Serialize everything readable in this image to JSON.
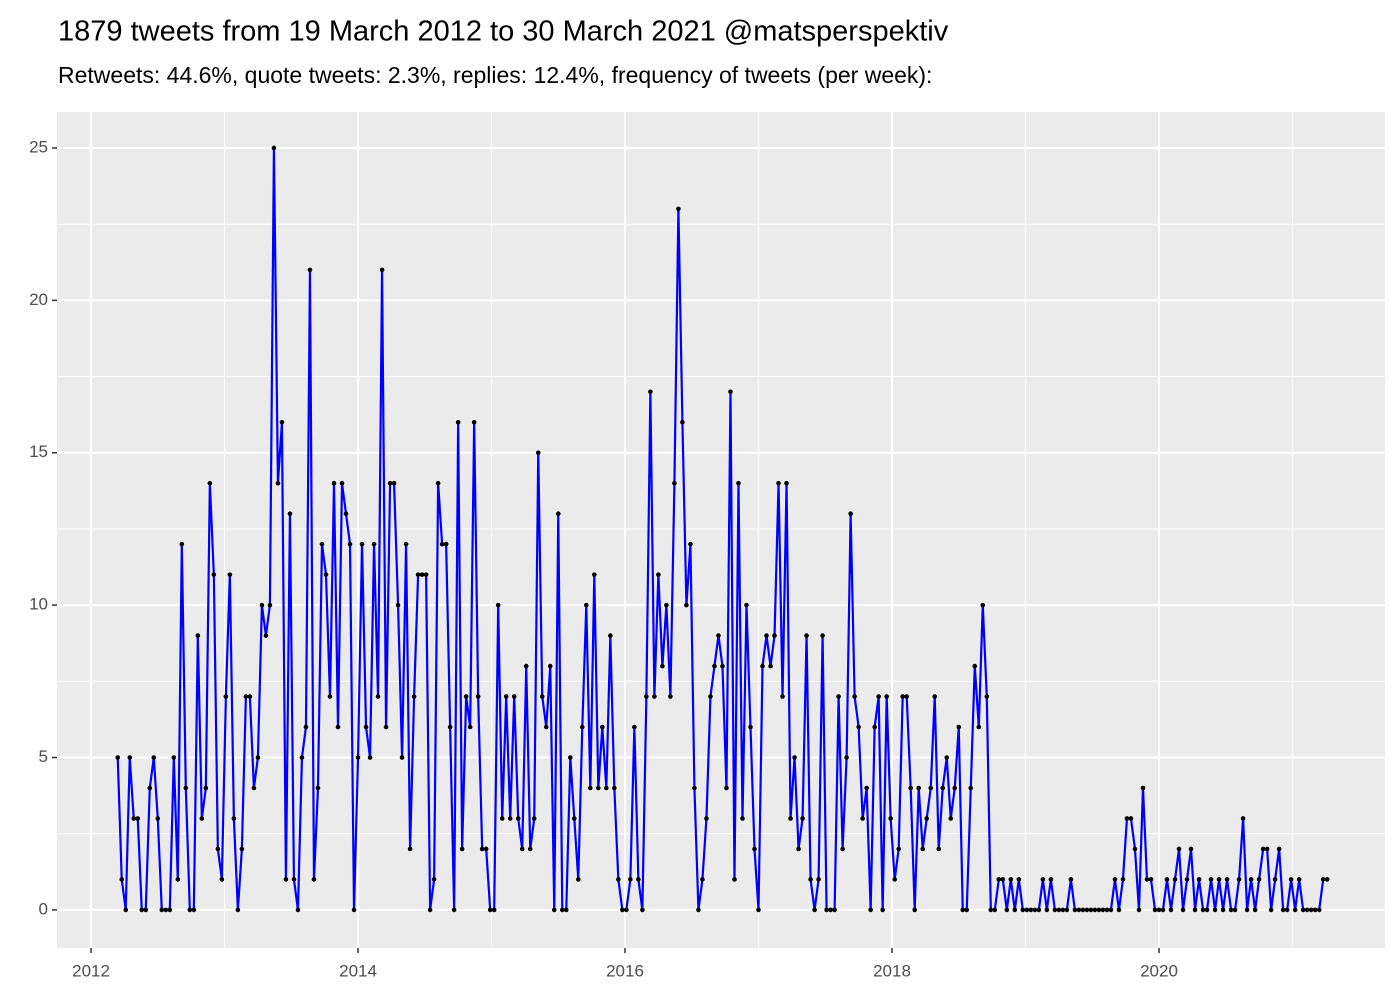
{
  "chart_data": {
    "type": "line",
    "title": "1879 tweets from 19 March 2012 to 30 March 2021 @matsperspektiv",
    "subtitle": "Retweets: 44.6%, quote tweets: 2.3%, replies: 12.4%, frequency of tweets (per week):",
    "x": [
      2012.2,
      2012.23,
      2012.26,
      2012.29,
      2012.32,
      2012.35,
      2012.38,
      2012.41,
      2012.44,
      2012.47,
      2012.5,
      2012.53,
      2012.56,
      2012.59,
      2012.62,
      2012.65,
      2012.68,
      2012.71,
      2012.74,
      2012.77,
      2012.8,
      2012.83,
      2012.86,
      2012.89,
      2012.92,
      2012.95,
      2012.98,
      2013.01,
      2013.04,
      2013.07,
      2013.1,
      2013.13,
      2013.16,
      2013.19,
      2013.22,
      2013.25,
      2013.28,
      2013.31,
      2013.34,
      2013.37,
      2013.4,
      2013.43,
      2013.46,
      2013.49,
      2013.52,
      2013.55,
      2013.58,
      2013.61,
      2013.64,
      2013.67,
      2013.7,
      2013.73,
      2013.76,
      2013.79,
      2013.82,
      2013.85,
      2013.88,
      2013.91,
      2013.94,
      2013.97,
      2014.0,
      2014.03,
      2014.06,
      2014.09,
      2014.12,
      2014.15,
      2014.18,
      2014.21,
      2014.24,
      2014.27,
      2014.3,
      2014.33,
      2014.36,
      2014.39,
      2014.42,
      2014.45,
      2014.48,
      2014.51,
      2014.54,
      2014.57,
      2014.6,
      2014.63,
      2014.66,
      2014.69,
      2014.72,
      2014.75,
      2014.78,
      2014.81,
      2014.84,
      2014.87,
      2014.9,
      2014.93,
      2014.96,
      2014.99,
      2015.02,
      2015.05,
      2015.08,
      2015.11,
      2015.14,
      2015.17,
      2015.2,
      2015.23,
      2015.26,
      2015.29,
      2015.32,
      2015.35,
      2015.38,
      2015.41,
      2015.44,
      2015.47,
      2015.5,
      2015.53,
      2015.56,
      2015.59,
      2015.62,
      2015.65,
      2015.68,
      2015.71,
      2015.74,
      2015.77,
      2015.8,
      2015.83,
      2015.86,
      2015.89,
      2015.92,
      2015.95,
      2015.98,
      2016.01,
      2016.04,
      2016.07,
      2016.1,
      2016.13,
      2016.16,
      2016.19,
      2016.22,
      2016.25,
      2016.28,
      2016.31,
      2016.34,
      2016.37,
      2016.4,
      2016.43,
      2016.46,
      2016.49,
      2016.52,
      2016.55,
      2016.58,
      2016.61,
      2016.64,
      2016.67,
      2016.7,
      2016.73,
      2016.76,
      2016.79,
      2016.82,
      2016.85,
      2016.88,
      2016.91,
      2016.94,
      2016.97,
      2017.0,
      2017.03,
      2017.06,
      2017.09,
      2017.12,
      2017.15,
      2017.18,
      2017.21,
      2017.24,
      2017.27,
      2017.3,
      2017.33,
      2017.36,
      2017.39,
      2017.42,
      2017.45,
      2017.48,
      2017.51,
      2017.54,
      2017.57,
      2017.6,
      2017.63,
      2017.66,
      2017.69,
      2017.72,
      2017.75,
      2017.78,
      2017.81,
      2017.84,
      2017.87,
      2017.9,
      2017.93,
      2017.96,
      2017.99,
      2018.02,
      2018.05,
      2018.08,
      2018.11,
      2018.14,
      2018.17,
      2018.2,
      2018.23,
      2018.26,
      2018.29,
      2018.32,
      2018.35,
      2018.38,
      2018.41,
      2018.44,
      2018.47,
      2018.5,
      2018.53,
      2018.56,
      2018.59,
      2018.62,
      2018.65,
      2018.68,
      2018.71,
      2018.74,
      2018.77,
      2018.8,
      2018.83,
      2018.86,
      2018.89,
      2018.92,
      2018.95,
      2018.98,
      2019.01,
      2019.04,
      2019.07,
      2019.1,
      2019.13,
      2019.16,
      2019.19,
      2019.22,
      2019.25,
      2019.28,
      2019.31,
      2019.34,
      2019.37,
      2019.4,
      2019.43,
      2019.46,
      2019.49,
      2019.52,
      2019.55,
      2019.58,
      2019.61,
      2019.64,
      2019.67,
      2019.7,
      2019.73,
      2019.76,
      2019.79,
      2019.82,
      2019.85,
      2019.88,
      2019.91,
      2019.94,
      2019.97,
      2020.0,
      2020.03,
      2020.06,
      2020.09,
      2020.12,
      2020.15,
      2020.18,
      2020.21,
      2020.24,
      2020.27,
      2020.3,
      2020.33,
      2020.36,
      2020.39,
      2020.42,
      2020.45,
      2020.48,
      2020.51,
      2020.54,
      2020.57,
      2020.6,
      2020.63,
      2020.66,
      2020.69,
      2020.72,
      2020.75,
      2020.78,
      2020.81,
      2020.84,
      2020.87,
      2020.9,
      2020.93,
      2020.96,
      2020.99,
      2021.02,
      2021.05,
      2021.08,
      2021.11,
      2021.14,
      2021.17,
      2021.2,
      2021.23,
      2021.26
    ],
    "series": [
      {
        "color": "#0000ff",
        "marker_color": "#000000",
        "values": [
          5,
          1,
          0,
          5,
          3,
          3,
          0,
          0,
          4,
          5,
          3,
          0,
          0,
          0,
          5,
          1,
          12,
          4,
          0,
          0,
          9,
          3,
          4,
          14,
          11,
          2,
          1,
          7,
          11,
          3,
          0,
          2,
          7,
          7,
          4,
          5,
          10,
          9,
          10,
          25,
          14,
          16,
          1,
          13,
          1,
          0,
          5,
          6,
          21,
          1,
          4,
          12,
          11,
          7,
          14,
          6,
          14,
          13,
          12,
          0,
          5,
          12,
          6,
          5,
          12,
          7,
          21,
          6,
          14,
          14,
          10,
          5,
          12,
          2,
          7,
          11,
          11,
          11,
          0,
          1,
          14,
          12,
          12,
          6,
          0,
          16,
          2,
          7,
          6,
          16,
          7,
          2,
          2,
          0,
          0,
          10,
          3,
          7,
          3,
          7,
          3,
          2,
          8,
          2,
          3,
          15,
          7,
          6,
          8,
          0,
          13,
          0,
          0,
          5,
          3,
          1,
          6,
          10,
          4,
          11,
          4,
          6,
          4,
          9,
          4,
          1,
          0,
          0,
          1,
          6,
          1,
          0,
          7,
          17,
          7,
          11,
          8,
          10,
          7,
          14,
          23,
          16,
          10,
          12,
          4,
          0,
          1,
          3,
          7,
          8,
          9,
          8,
          4,
          17,
          1,
          14,
          3,
          10,
          6,
          2,
          0,
          8,
          9,
          8,
          9,
          14,
          7,
          14,
          3,
          5,
          2,
          3,
          9,
          1,
          0,
          1,
          9,
          0,
          0,
          0,
          7,
          2,
          5,
          13,
          7,
          6,
          3,
          4,
          0,
          6,
          7,
          0,
          7,
          3,
          1,
          2,
          7,
          7,
          4,
          0,
          4,
          2,
          3,
          4,
          7,
          2,
          4,
          5,
          3,
          4,
          6,
          0,
          0,
          4,
          8,
          6,
          10,
          7,
          0,
          0,
          1,
          1,
          0,
          1,
          0,
          1,
          0,
          0,
          0,
          0,
          0,
          1,
          0,
          1,
          0,
          0,
          0,
          0,
          1,
          0,
          0,
          0,
          0,
          0,
          0,
          0,
          0,
          0,
          0,
          1,
          0,
          1,
          3,
          3,
          2,
          0,
          4,
          1,
          1,
          0,
          0,
          0,
          1,
          0,
          1,
          2,
          0,
          1,
          2,
          0,
          1,
          0,
          0,
          1,
          0,
          1,
          0,
          1,
          0,
          0,
          1,
          3,
          0,
          1,
          0,
          1,
          2,
          2,
          0,
          1,
          2,
          0,
          0,
          1,
          0,
          1,
          0,
          0,
          0,
          0,
          0,
          1,
          1
        ]
      }
    ],
    "xlim": [
      2011.745,
      2021.693
    ],
    "ylim": [
      -1.25,
      26.18
    ],
    "xticks": [
      2012,
      2014,
      2016,
      2018,
      2020
    ],
    "yticks": [
      0,
      5,
      10,
      15,
      20,
      25
    ],
    "grid": true
  }
}
